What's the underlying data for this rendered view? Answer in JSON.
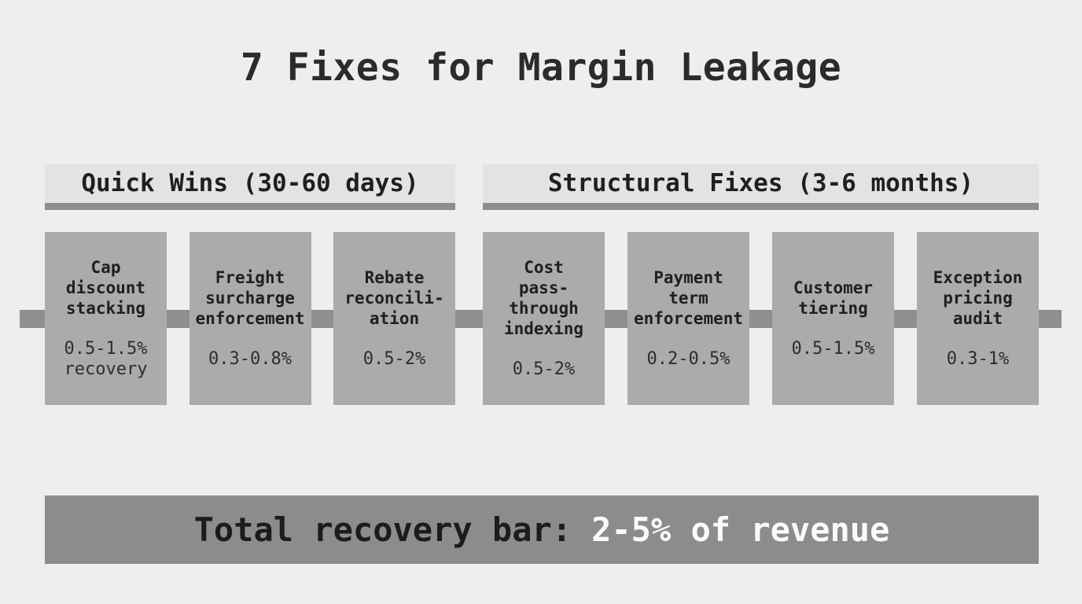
{
  "title": "7 Fixes for Margin Leakage",
  "groups": [
    {
      "label": "Quick Wins (30-60 days)"
    },
    {
      "label": "Structural Fixes (3-6 months)"
    }
  ],
  "cards": [
    {
      "group": 0,
      "title": "Cap\ndiscount\nstacking",
      "value": "0.5-1.5%\nrecovery"
    },
    {
      "group": 0,
      "title": "Freight\nsurcharge\nenforcement",
      "value": "0.3-0.8%"
    },
    {
      "group": 0,
      "title": "Rebate\nreconcili-\nation",
      "value": "0.5-2%"
    },
    {
      "group": 1,
      "title": "Cost\npass-\nthrough\nindexing",
      "value": "0.5-2%"
    },
    {
      "group": 1,
      "title": "Payment\nterm\nenforcement",
      "value": "0.2-0.5%"
    },
    {
      "group": 1,
      "title": "Customer\ntiering",
      "value": "0.5-1.5%"
    },
    {
      "group": 1,
      "title": "Exception\npricing\naudit",
      "value": "0.3-1%"
    }
  ],
  "footer": {
    "label": "Total recovery bar:",
    "value": "2-5% of revenue"
  },
  "colors": {
    "background": "#efeeed",
    "header_fill": "#e4e3e1",
    "header_underline": "#8f8e8c",
    "card_fill": "#adabaa",
    "connector": "#908f8d",
    "footer_bar": "#8e8c8a",
    "dark_text": "#242424",
    "footer_value_text": "#fafafa"
  }
}
